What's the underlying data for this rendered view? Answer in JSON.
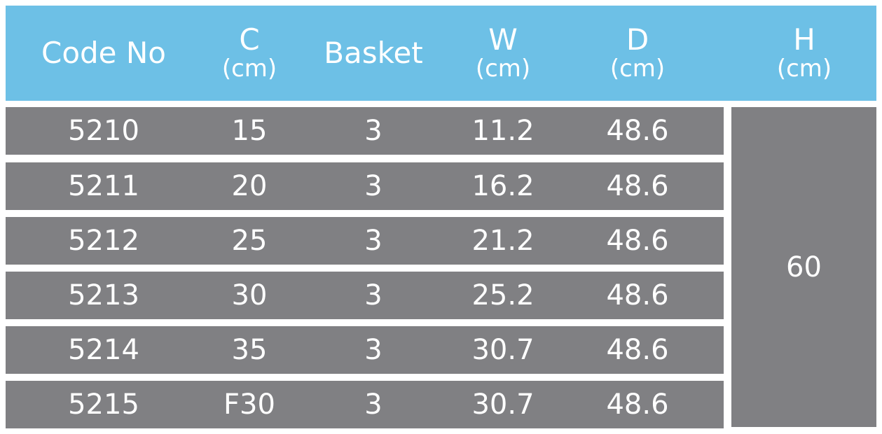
{
  "headers": [
    {
      "main": "Code No",
      "unit": ""
    },
    {
      "main": "C",
      "unit": "(cm)"
    },
    {
      "main": "Basket",
      "unit": ""
    },
    {
      "main": "W",
      "unit": "(cm)"
    },
    {
      "main": "D",
      "unit": "(cm)"
    },
    {
      "main": "H",
      "unit": "(cm)"
    }
  ],
  "rows": [
    [
      "5210",
      "15",
      "3",
      "11.2",
      "48.6"
    ],
    [
      "5211",
      "20",
      "3",
      "16.2",
      "48.6"
    ],
    [
      "5212",
      "25",
      "3",
      "21.2",
      "48.6"
    ],
    [
      "5213",
      "30",
      "3",
      "25.2",
      "48.6"
    ],
    [
      "5214",
      "35",
      "3",
      "30.7",
      "48.6"
    ],
    [
      "5215",
      "F30",
      "3",
      "30.7",
      "48.6"
    ]
  ],
  "h_value": "60",
  "colors": {
    "header_bg": "#6dc0e6",
    "row_bg": "#808083",
    "text": "#ffffff"
  }
}
